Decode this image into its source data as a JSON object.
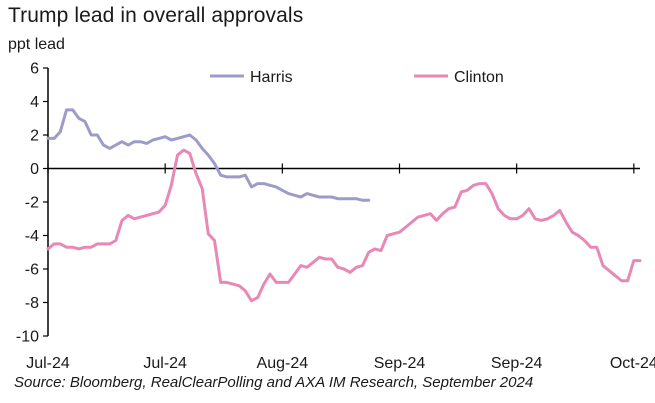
{
  "title": "Trump lead in overall approvals",
  "source": "Source: Bloomberg, RealClearPolling and AXA IM Research, September 2024",
  "colors": {
    "harris": "#9d9bc9",
    "clinton": "#e889b5",
    "axis": "#000000"
  },
  "chart_data": {
    "type": "line",
    "title": "Trump lead in overall approvals",
    "ylabel": "ppt lead",
    "xlabel": "",
    "ylim": [
      -10,
      6
    ],
    "yticks": [
      6,
      4,
      2,
      0,
      -2,
      -4,
      -6,
      -8,
      -10
    ],
    "x_tick_labels": [
      "Jul-24",
      "Jul-24",
      "Aug-24",
      "Sep-24",
      "Sep-24",
      "Oct-24"
    ],
    "x_range": [
      0,
      96
    ],
    "x_ticks": [
      0,
      19,
      38,
      57,
      76,
      95
    ],
    "grid": false,
    "legend_placement": "top",
    "series": [
      {
        "name": "Harris",
        "color": "#9d9bc9",
        "x": [
          0,
          1,
          2,
          3,
          4,
          5,
          6,
          7,
          8,
          9,
          10,
          11,
          12,
          13,
          14,
          15,
          16,
          17,
          18,
          19,
          20,
          21,
          22,
          23,
          24,
          25,
          26,
          27,
          28,
          29,
          30,
          31,
          32,
          33,
          34,
          35,
          36,
          37,
          38,
          39,
          40,
          41,
          42,
          43,
          44,
          45,
          46,
          47,
          48,
          49,
          50,
          51,
          52,
          53,
          54,
          55,
          56,
          57,
          58
        ],
        "values": [
          1.8,
          1.8,
          2.2,
          3.5,
          3.5,
          3.0,
          2.8,
          2.0,
          2.0,
          1.4,
          1.2,
          1.4,
          1.6,
          1.4,
          1.6,
          1.6,
          1.5,
          1.7,
          1.8,
          1.9,
          1.7,
          1.8,
          1.9,
          2.0,
          1.7,
          1.2,
          0.8,
          0.3,
          -0.4,
          -0.5,
          -0.5,
          -0.5,
          -0.4,
          -1.1,
          -0.9,
          -0.9,
          -1.0,
          -1.1,
          -1.3,
          -1.5,
          -1.6,
          -1.7,
          -1.5,
          -1.6,
          -1.7,
          -1.7,
          -1.7,
          -1.8,
          -1.8,
          -1.8,
          -1.8,
          -1.9,
          -1.9,
          null,
          null,
          null,
          null,
          null,
          null
        ]
      },
      {
        "name": "Clinton",
        "color": "#e889b5",
        "x": [
          0,
          1,
          2,
          3,
          4,
          5,
          6,
          7,
          8,
          9,
          10,
          11,
          12,
          13,
          14,
          15,
          16,
          17,
          18,
          19,
          20,
          21,
          22,
          23,
          24,
          25,
          26,
          27,
          28,
          29,
          30,
          31,
          32,
          33,
          34,
          35,
          36,
          37,
          38,
          39,
          40,
          41,
          42,
          43,
          44,
          45,
          46,
          47,
          48,
          49,
          50,
          51,
          52,
          53,
          54,
          55,
          56,
          57,
          58,
          59,
          60,
          61,
          62,
          63,
          64,
          65,
          66,
          67,
          68,
          69,
          70,
          71,
          72,
          73,
          74,
          75,
          76,
          77,
          78,
          79,
          80,
          81,
          82,
          83,
          84,
          85,
          86,
          87,
          88,
          89,
          90,
          91,
          92,
          93,
          94,
          95,
          96
        ],
        "values": [
          -4.8,
          -4.5,
          -4.5,
          -4.7,
          -4.7,
          -4.8,
          -4.7,
          -4.7,
          -4.5,
          -4.5,
          -4.5,
          -4.3,
          -3.1,
          -2.8,
          -3.0,
          -2.9,
          -2.8,
          -2.7,
          -2.6,
          -2.2,
          -1.0,
          0.8,
          1.1,
          0.9,
          -0.3,
          -1.2,
          -3.9,
          -4.3,
          -6.8,
          -6.8,
          -6.9,
          -7.0,
          -7.3,
          -7.9,
          -7.7,
          -6.9,
          -6.3,
          -6.8,
          -6.8,
          -6.8,
          -6.3,
          -5.8,
          -5.9,
          -5.6,
          -5.3,
          -5.4,
          -5.4,
          -5.9,
          -6.0,
          -6.2,
          -5.9,
          -5.8,
          -5.0,
          -4.8,
          -4.9,
          -4.0,
          -3.9,
          -3.8,
          -3.5,
          -3.2,
          -2.9,
          -2.8,
          -2.7,
          -3.1,
          -2.7,
          -2.4,
          -2.3,
          -1.4,
          -1.3,
          -1.0,
          -0.9,
          -0.9,
          -1.5,
          -2.4,
          -2.8,
          -3.0,
          -3.0,
          -2.8,
          -2.4,
          -3.0,
          -3.1,
          -3.0,
          -2.8,
          -2.5,
          -3.2,
          -3.8,
          -4.0,
          -4.3,
          -4.7,
          -4.7,
          -5.8,
          -6.1,
          -6.4,
          -6.7,
          -6.7,
          -5.5,
          -5.5
        ]
      }
    ]
  }
}
